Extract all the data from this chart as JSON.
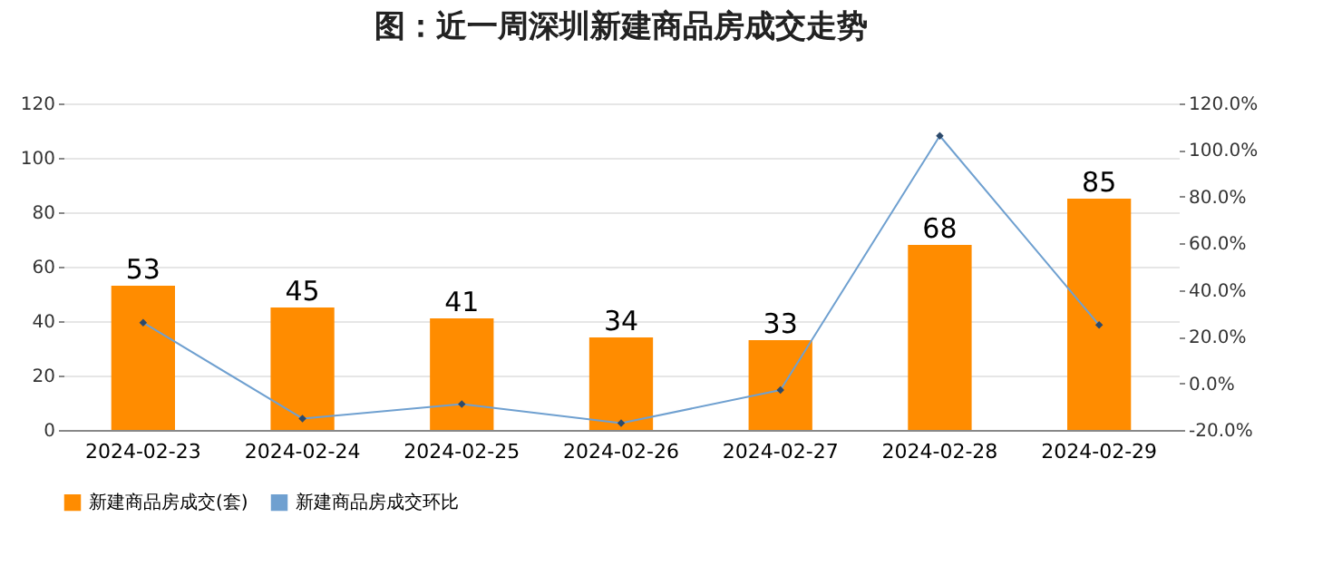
{
  "chart_data": {
    "type": "bar",
    "title": "图：近一周深圳新建商品房成交走势",
    "categories": [
      "2024-02-23",
      "2024-02-24",
      "2024-02-25",
      "2024-02-26",
      "2024-02-27",
      "2024-02-28",
      "2024-02-29"
    ],
    "series": [
      {
        "name": "新建商品房成交(套)",
        "color": "#ff8c00",
        "values": [
          53,
          45,
          41,
          34,
          33,
          68,
          85
        ],
        "value_labels": [
          "53",
          "45",
          "41",
          "34",
          "33",
          "68",
          "85"
        ]
      },
      {
        "name": "新建商品房成交环比",
        "color": "#6fa0d0",
        "type": "line",
        "axis": "y2",
        "marker": "diamond",
        "values": [
          26,
          -15.1,
          -8.9,
          -17.1,
          -2.9,
          106.1,
          25
        ]
      }
    ],
    "ylim": [
      0,
      120
    ],
    "yticks": [
      0,
      20,
      40,
      60,
      80,
      100,
      120
    ],
    "y2lim": [
      -20,
      120
    ],
    "y2ticks": [
      {
        "value": -20,
        "label": "-20.0%"
      },
      {
        "value": 0,
        "label": "0.0%"
      },
      {
        "value": 20,
        "label": "20.0%"
      },
      {
        "value": 40,
        "label": "40.0%"
      },
      {
        "value": 60,
        "label": "60.0%"
      },
      {
        "value": 80,
        "label": "80.0%"
      },
      {
        "value": 100,
        "label": "100.0%"
      },
      {
        "value": 120,
        "label": "120.0%"
      }
    ],
    "grid": "y",
    "legend": "bottom"
  }
}
